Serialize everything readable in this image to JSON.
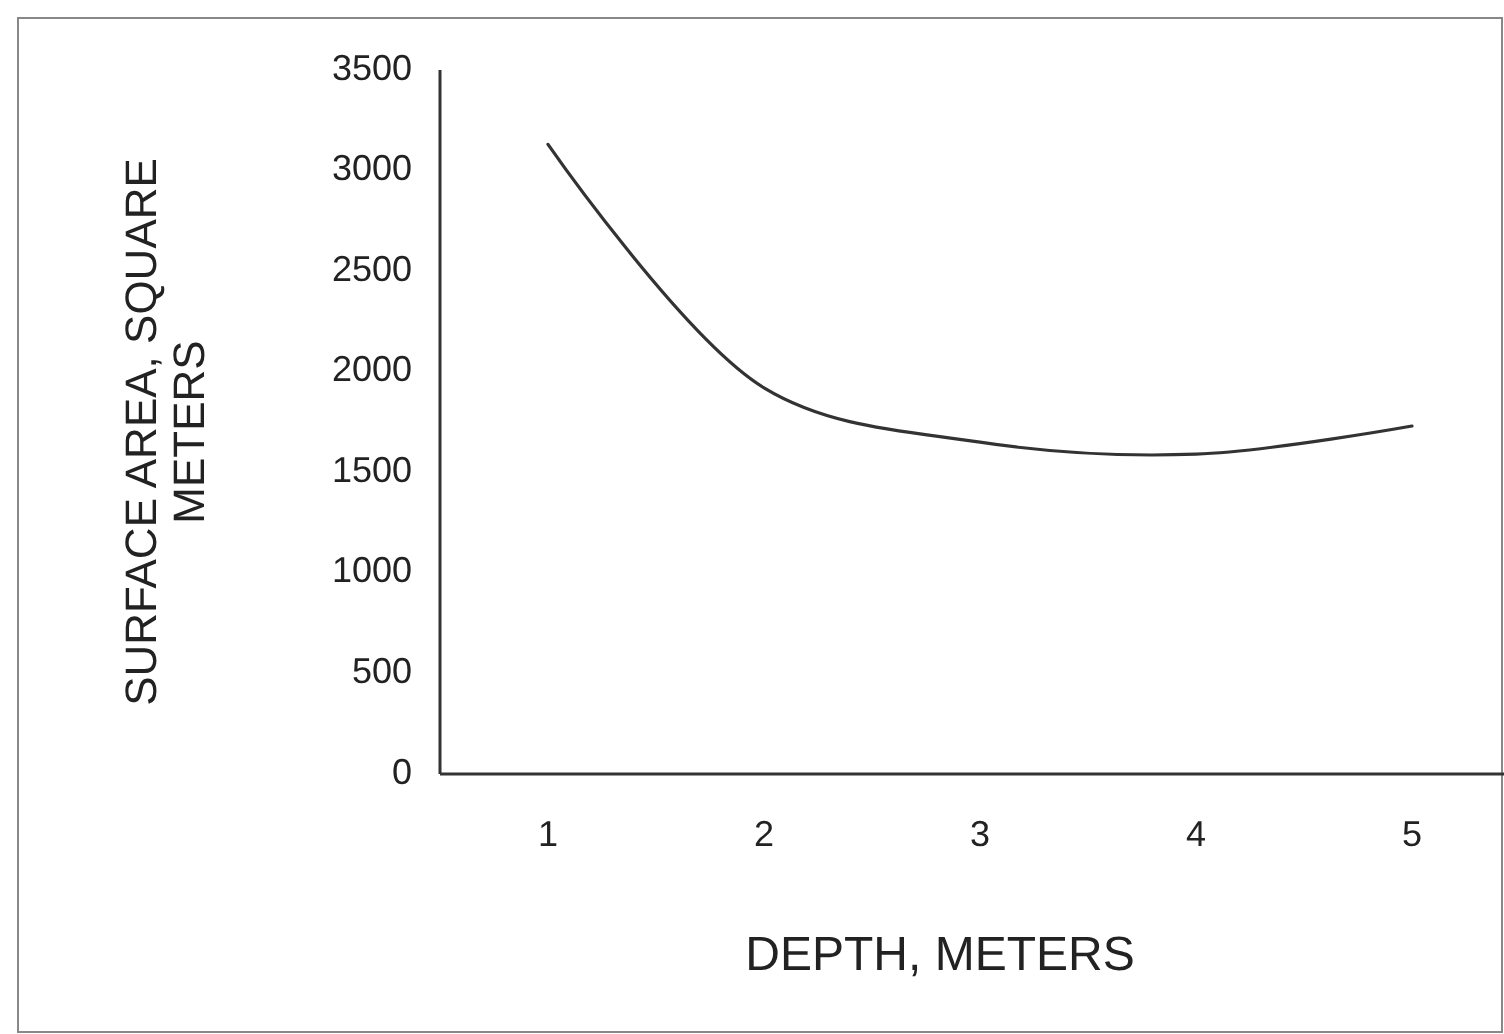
{
  "chart_data": {
    "type": "line",
    "xlabel": "DEPTH, METERS",
    "ylabel": "SURFACE AREA, SQUARE METERS",
    "categories": [
      "1",
      "2",
      "3",
      "4",
      "5"
    ],
    "series": [
      {
        "color": "#333333",
        "values": [
          3130,
          1920,
          1650,
          1590,
          1730
        ]
      }
    ],
    "ylim": [
      0,
      3500
    ],
    "yticks": [
      0,
      500,
      1000,
      1500,
      2000,
      2500,
      3000,
      3500
    ],
    "grid": false,
    "marker": "none",
    "line_style": "solid"
  }
}
